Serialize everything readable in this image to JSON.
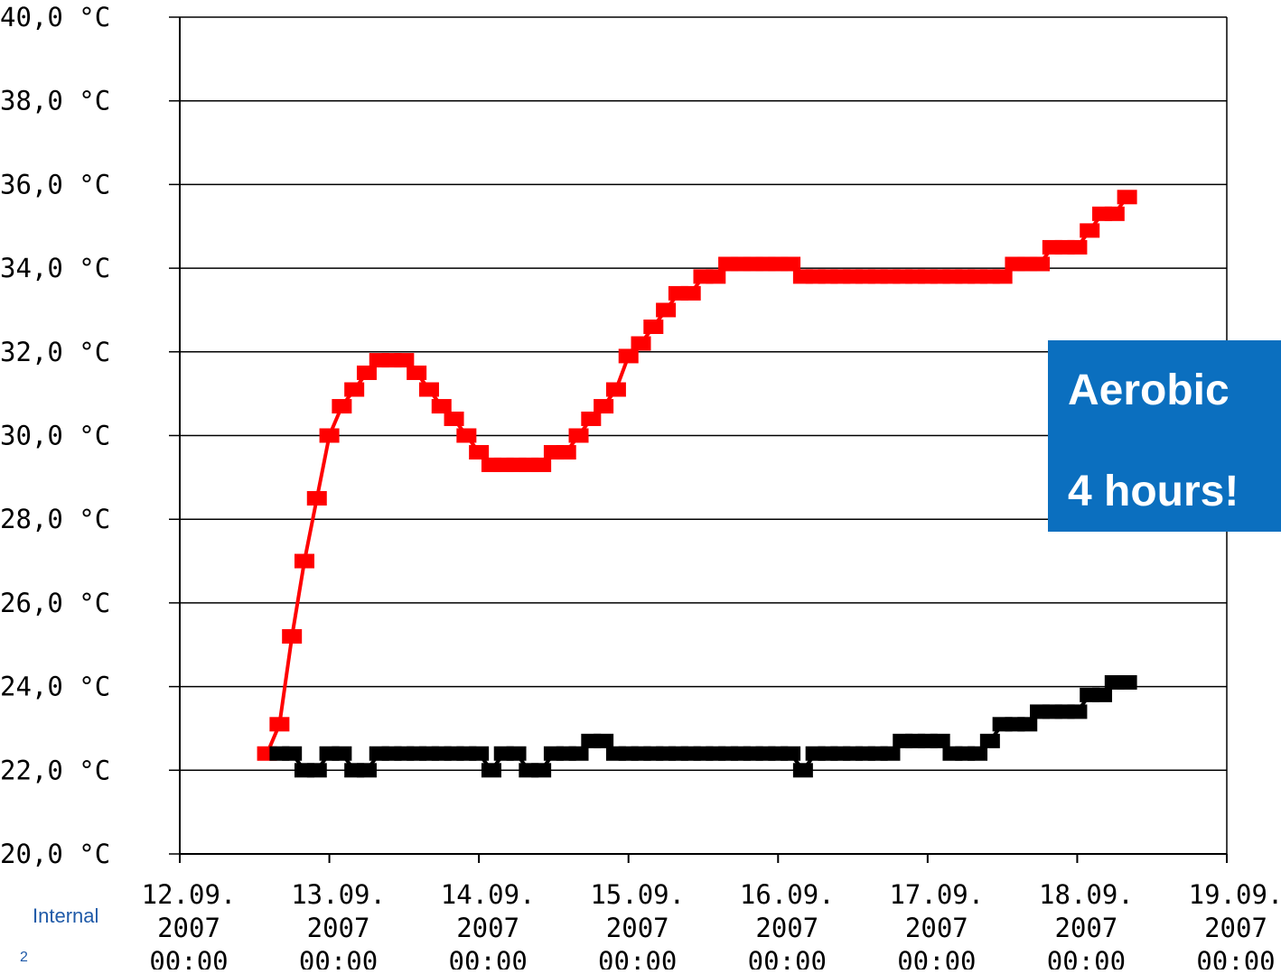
{
  "chart_data": {
    "type": "line",
    "ylim": [
      20,
      40
    ],
    "y_ticks": [
      "20,0 °C",
      "22,0 °C",
      "24,0 °C",
      "26,0 °C",
      "28,0 °C",
      "30,0 °C",
      "32,0 °C",
      "34,0 °C",
      "36,0 °C",
      "38,0 °C",
      "40,0 °C"
    ],
    "x_ticks": [
      {
        "date": "12.09.",
        "year": "2007",
        "time": "00:00"
      },
      {
        "date": "13.09.",
        "year": "2007",
        "time": "00:00"
      },
      {
        "date": "14.09.",
        "year": "2007",
        "time": "00:00"
      },
      {
        "date": "15.09.",
        "year": "2007",
        "time": "00:00"
      },
      {
        "date": "16.09.",
        "year": "2007",
        "time": "00:00"
      },
      {
        "date": "17.09.",
        "year": "2007",
        "time": "00:00"
      },
      {
        "date": "18.09.",
        "year": "2007",
        "time": "00:00"
      },
      {
        "date": "19.09.",
        "year": "2007",
        "time": "00:00"
      }
    ],
    "xlim": [
      "2007-09-12 00:00",
      "2007-09-19 00:00"
    ],
    "grid": "horizontal",
    "series": [
      {
        "color": "#ff0000",
        "points": [
          [
            "2007-09-12 14:00",
            22.4
          ],
          [
            "2007-09-12 16:00",
            23.1
          ],
          [
            "2007-09-12 18:00",
            25.2
          ],
          [
            "2007-09-12 20:00",
            27.0
          ],
          [
            "2007-09-12 22:00",
            28.5
          ],
          [
            "2007-09-13 00:00",
            30.0
          ],
          [
            "2007-09-13 02:00",
            30.7
          ],
          [
            "2007-09-13 04:00",
            31.1
          ],
          [
            "2007-09-13 06:00",
            31.5
          ],
          [
            "2007-09-13 08:00",
            31.8
          ],
          [
            "2007-09-13 10:00",
            31.8
          ],
          [
            "2007-09-13 12:00",
            31.8
          ],
          [
            "2007-09-13 14:00",
            31.5
          ],
          [
            "2007-09-13 16:00",
            31.1
          ],
          [
            "2007-09-13 18:00",
            30.7
          ],
          [
            "2007-09-13 20:00",
            30.4
          ],
          [
            "2007-09-13 22:00",
            30.0
          ],
          [
            "2007-09-14 00:00",
            29.6
          ],
          [
            "2007-09-14 02:00",
            29.3
          ],
          [
            "2007-09-14 04:00",
            29.3
          ],
          [
            "2007-09-14 06:00",
            29.3
          ],
          [
            "2007-09-14 08:00",
            29.3
          ],
          [
            "2007-09-14 10:00",
            29.3
          ],
          [
            "2007-09-14 12:00",
            29.6
          ],
          [
            "2007-09-14 14:00",
            29.6
          ],
          [
            "2007-09-14 16:00",
            30.0
          ],
          [
            "2007-09-14 18:00",
            30.4
          ],
          [
            "2007-09-14 20:00",
            30.7
          ],
          [
            "2007-09-14 22:00",
            31.1
          ],
          [
            "2007-09-15 00:00",
            31.9
          ],
          [
            "2007-09-15 02:00",
            32.2
          ],
          [
            "2007-09-15 04:00",
            32.6
          ],
          [
            "2007-09-15 06:00",
            33.0
          ],
          [
            "2007-09-15 08:00",
            33.4
          ],
          [
            "2007-09-15 10:00",
            33.4
          ],
          [
            "2007-09-15 12:00",
            33.8
          ],
          [
            "2007-09-15 14:00",
            33.8
          ],
          [
            "2007-09-15 16:00",
            34.1
          ],
          [
            "2007-09-15 18:00",
            34.1
          ],
          [
            "2007-09-15 20:00",
            34.1
          ],
          [
            "2007-09-15 22:00",
            34.1
          ],
          [
            "2007-09-16 00:00",
            34.1
          ],
          [
            "2007-09-16 02:00",
            34.1
          ],
          [
            "2007-09-16 04:00",
            33.8
          ],
          [
            "2007-09-16 06:00",
            33.8
          ],
          [
            "2007-09-16 08:00",
            33.8
          ],
          [
            "2007-09-16 10:00",
            33.8
          ],
          [
            "2007-09-16 12:00",
            33.8
          ],
          [
            "2007-09-16 14:00",
            33.8
          ],
          [
            "2007-09-16 16:00",
            33.8
          ],
          [
            "2007-09-16 18:00",
            33.8
          ],
          [
            "2007-09-16 20:00",
            33.8
          ],
          [
            "2007-09-16 22:00",
            33.8
          ],
          [
            "2007-09-17 00:00",
            33.8
          ],
          [
            "2007-09-17 02:00",
            33.8
          ],
          [
            "2007-09-17 04:00",
            33.8
          ],
          [
            "2007-09-17 06:00",
            33.8
          ],
          [
            "2007-09-17 08:00",
            33.8
          ],
          [
            "2007-09-17 10:00",
            33.8
          ],
          [
            "2007-09-17 12:00",
            33.8
          ],
          [
            "2007-09-17 14:00",
            34.1
          ],
          [
            "2007-09-17 16:00",
            34.1
          ],
          [
            "2007-09-17 18:00",
            34.1
          ],
          [
            "2007-09-17 20:00",
            34.5
          ],
          [
            "2007-09-17 22:00",
            34.5
          ],
          [
            "2007-09-18 00:00",
            34.5
          ],
          [
            "2007-09-18 02:00",
            34.9
          ],
          [
            "2007-09-18 04:00",
            35.3
          ],
          [
            "2007-09-18 06:00",
            35.3
          ],
          [
            "2007-09-18 08:00",
            35.7
          ]
        ]
      },
      {
        "color": "#000000",
        "points": [
          [
            "2007-09-12 16:00",
            22.4
          ],
          [
            "2007-09-12 18:00",
            22.4
          ],
          [
            "2007-09-12 20:00",
            22.0
          ],
          [
            "2007-09-12 22:00",
            22.0
          ],
          [
            "2007-09-13 00:00",
            22.4
          ],
          [
            "2007-09-13 02:00",
            22.4
          ],
          [
            "2007-09-13 04:00",
            22.0
          ],
          [
            "2007-09-13 06:00",
            22.0
          ],
          [
            "2007-09-13 08:00",
            22.4
          ],
          [
            "2007-09-13 10:00",
            22.4
          ],
          [
            "2007-09-13 12:00",
            22.4
          ],
          [
            "2007-09-13 14:00",
            22.4
          ],
          [
            "2007-09-13 16:00",
            22.4
          ],
          [
            "2007-09-13 18:00",
            22.4
          ],
          [
            "2007-09-13 20:00",
            22.4
          ],
          [
            "2007-09-13 22:00",
            22.4
          ],
          [
            "2007-09-14 00:00",
            22.4
          ],
          [
            "2007-09-14 02:00",
            22.0
          ],
          [
            "2007-09-14 04:00",
            22.4
          ],
          [
            "2007-09-14 06:00",
            22.4
          ],
          [
            "2007-09-14 08:00",
            22.0
          ],
          [
            "2007-09-14 10:00",
            22.0
          ],
          [
            "2007-09-14 12:00",
            22.4
          ],
          [
            "2007-09-14 14:00",
            22.4
          ],
          [
            "2007-09-14 16:00",
            22.4
          ],
          [
            "2007-09-14 18:00",
            22.7
          ],
          [
            "2007-09-14 20:00",
            22.7
          ],
          [
            "2007-09-14 22:00",
            22.4
          ],
          [
            "2007-09-15 00:00",
            22.4
          ],
          [
            "2007-09-15 02:00",
            22.4
          ],
          [
            "2007-09-15 04:00",
            22.4
          ],
          [
            "2007-09-15 06:00",
            22.4
          ],
          [
            "2007-09-15 08:00",
            22.4
          ],
          [
            "2007-09-15 10:00",
            22.4
          ],
          [
            "2007-09-15 12:00",
            22.4
          ],
          [
            "2007-09-15 14:00",
            22.4
          ],
          [
            "2007-09-15 16:00",
            22.4
          ],
          [
            "2007-09-15 18:00",
            22.4
          ],
          [
            "2007-09-15 20:00",
            22.4
          ],
          [
            "2007-09-15 22:00",
            22.4
          ],
          [
            "2007-09-16 00:00",
            22.4
          ],
          [
            "2007-09-16 02:00",
            22.4
          ],
          [
            "2007-09-16 04:00",
            22.0
          ],
          [
            "2007-09-16 06:00",
            22.4
          ],
          [
            "2007-09-16 08:00",
            22.4
          ],
          [
            "2007-09-16 10:00",
            22.4
          ],
          [
            "2007-09-16 12:00",
            22.4
          ],
          [
            "2007-09-16 14:00",
            22.4
          ],
          [
            "2007-09-16 16:00",
            22.4
          ],
          [
            "2007-09-16 18:00",
            22.4
          ],
          [
            "2007-09-16 20:00",
            22.7
          ],
          [
            "2007-09-16 22:00",
            22.7
          ],
          [
            "2007-09-17 00:00",
            22.7
          ],
          [
            "2007-09-17 02:00",
            22.7
          ],
          [
            "2007-09-17 04:00",
            22.4
          ],
          [
            "2007-09-17 06:00",
            22.4
          ],
          [
            "2007-09-17 08:00",
            22.4
          ],
          [
            "2007-09-17 10:00",
            22.7
          ],
          [
            "2007-09-17 12:00",
            23.1
          ],
          [
            "2007-09-17 14:00",
            23.1
          ],
          [
            "2007-09-17 16:00",
            23.1
          ],
          [
            "2007-09-17 18:00",
            23.4
          ],
          [
            "2007-09-17 20:00",
            23.4
          ],
          [
            "2007-09-17 22:00",
            23.4
          ],
          [
            "2007-09-18 00:00",
            23.4
          ],
          [
            "2007-09-18 02:00",
            23.8
          ],
          [
            "2007-09-18 04:00",
            23.8
          ],
          [
            "2007-09-18 06:00",
            24.1
          ],
          [
            "2007-09-18 08:00",
            24.1
          ]
        ]
      }
    ]
  },
  "callout": {
    "line1": "Aerobic",
    "line2": "4 hours!"
  },
  "footer": {
    "label": "Internal",
    "page": "2"
  }
}
